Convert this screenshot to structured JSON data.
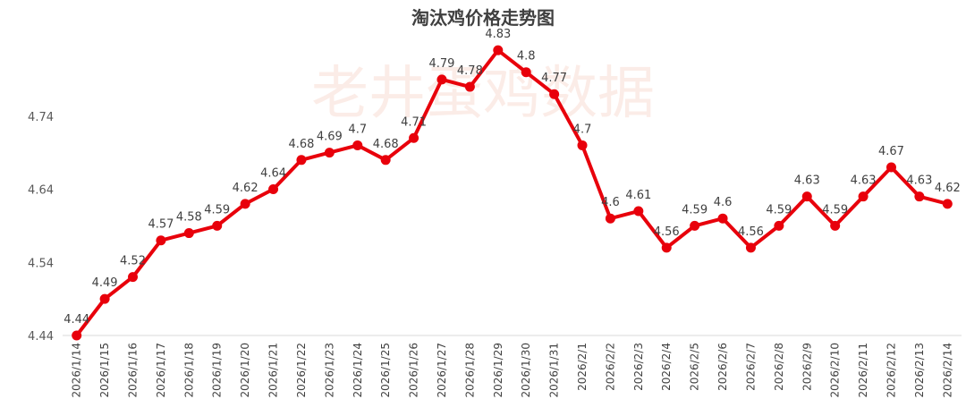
{
  "chart_data": {
    "type": "line",
    "title": "淘汰鸡价格走势图",
    "watermark": "老井蛋鸡数据",
    "xlabel": "",
    "ylabel": "",
    "ylim": [
      4.44,
      4.84
    ],
    "yticks": [
      "4.44",
      "4.54",
      "4.64",
      "4.74"
    ],
    "grid": false,
    "line_color": "#e8000b",
    "categories": [
      "2026/1/14",
      "2026/1/15",
      "2026/1/16",
      "2026/1/17",
      "2026/1/18",
      "2026/1/19",
      "2026/1/20",
      "2026/1/21",
      "2026/1/22",
      "2026/1/23",
      "2026/1/24",
      "2026/1/25",
      "2026/1/26",
      "2026/1/27",
      "2026/1/28",
      "2026/1/29",
      "2026/1/30",
      "2026/1/31",
      "2026/2/1",
      "2026/2/2",
      "2026/2/3",
      "2026/2/4",
      "2026/2/5",
      "2026/2/6",
      "2026/2/7",
      "2026/2/8",
      "2026/2/9",
      "2026/2/10",
      "2026/2/11",
      "2026/2/12",
      "2026/2/13",
      "2026/2/14"
    ],
    "values": [
      4.44,
      4.49,
      4.52,
      4.57,
      4.58,
      4.59,
      4.62,
      4.64,
      4.68,
      4.69,
      4.7,
      4.68,
      4.71,
      4.79,
      4.78,
      4.83,
      4.8,
      4.77,
      4.7,
      4.6,
      4.61,
      4.56,
      4.59,
      4.6,
      4.56,
      4.59,
      4.63,
      4.59,
      4.63,
      4.67,
      4.63,
      4.62
    ],
    "labels": [
      "4.44",
      "4.49",
      "4.52",
      "4.57",
      "4.58",
      "4.59",
      "4.62",
      "4.64",
      "4.68",
      "4.69",
      "4.7",
      "4.68",
      "4.71",
      "4.79",
      "4.78",
      "4.83",
      "4.8",
      "4.77",
      "4.7",
      "4.6",
      "4.61",
      "4.56",
      "4.59",
      "4.6",
      "4.56",
      "4.59",
      "4.63",
      "4.59",
      "4.63",
      "4.67",
      "4.63",
      "4.62"
    ]
  }
}
